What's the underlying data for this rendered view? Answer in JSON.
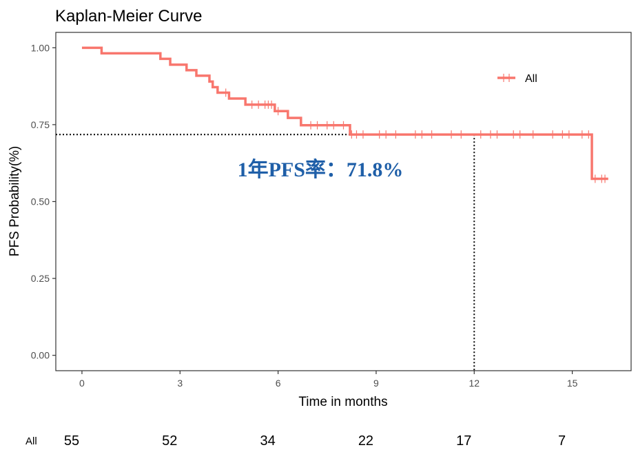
{
  "colors": {
    "curve": "#f8766d",
    "annotation": "#1f5fa8",
    "panel_border": "#333333",
    "reference_line": "#000000"
  },
  "chart_data": {
    "type": "line",
    "title": "Kaplan-Meier Curve",
    "xlabel": "Time in months",
    "ylabel": "PFS Probability(%)",
    "xlim": [
      -0.8,
      16.8
    ],
    "ylim": [
      -0.05,
      1.05
    ],
    "x_ticks": [
      0,
      3,
      6,
      9,
      12,
      15
    ],
    "x_tick_labels": [
      "0",
      "3",
      "6",
      "9",
      "12",
      "15"
    ],
    "y_ticks": [
      0,
      0.25,
      0.5,
      0.75,
      1.0
    ],
    "y_tick_labels": [
      "0.00",
      "0.25",
      "0.50",
      "0.75",
      "1.00"
    ],
    "grid": false,
    "legend": {
      "position": "top-right",
      "entries": [
        "All"
      ]
    },
    "series": [
      {
        "name": "All",
        "steps": [
          [
            0,
            1.0
          ],
          [
            0.6,
            0.982
          ],
          [
            2.4,
            0.964
          ],
          [
            2.7,
            0.945
          ],
          [
            3.2,
            0.927
          ],
          [
            3.5,
            0.909
          ],
          [
            3.9,
            0.89
          ],
          [
            4.0,
            0.872
          ],
          [
            4.15,
            0.854
          ],
          [
            4.5,
            0.835
          ],
          [
            5.0,
            0.815
          ],
          [
            5.9,
            0.794
          ],
          [
            6.3,
            0.772
          ],
          [
            6.7,
            0.748
          ],
          [
            8.2,
            0.718
          ],
          [
            15.6,
            0.574
          ],
          [
            16.1,
            0.574
          ]
        ],
        "censor_times": [
          4.4,
          5.2,
          5.4,
          5.6,
          5.7,
          5.8,
          6.0,
          7.0,
          7.2,
          7.5,
          7.7,
          8.0,
          8.25,
          8.4,
          8.6,
          9.1,
          9.3,
          9.6,
          10.2,
          10.4,
          10.7,
          11.3,
          11.6,
          12.2,
          12.5,
          12.7,
          13.2,
          13.4,
          13.8,
          14.4,
          14.7,
          14.9,
          15.3,
          15.5,
          15.7,
          15.9,
          16.0
        ]
      }
    ],
    "reference_lines": {
      "time": 12,
      "probability": 0.718
    },
    "annotation": "1年PFS率：71.8%",
    "risk_table": {
      "label": "All",
      "times": [
        0,
        3,
        6,
        9,
        12,
        15
      ],
      "counts": [
        "55",
        "52",
        "34",
        "22",
        "17",
        "7"
      ]
    }
  }
}
